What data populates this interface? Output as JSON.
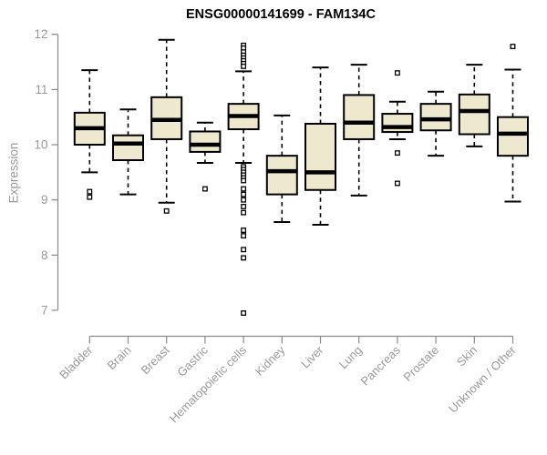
{
  "chart_data": {
    "type": "boxplot",
    "title": "ENSG00000141699 - FAM134C",
    "ylabel": "Expression",
    "xlabel": "",
    "ylim": [
      7,
      12
    ],
    "yticks": [
      7,
      8,
      9,
      10,
      11,
      12
    ],
    "grid": false,
    "legend": false,
    "categories": [
      "Bladder",
      "Brain",
      "Breast",
      "Gastric",
      "Hematopoietic cells",
      "Kidney",
      "Liver",
      "Lung",
      "Pancreas",
      "Prostate",
      "Skin",
      "Unknown / Other"
    ],
    "boxes": [
      {
        "category": "Bladder",
        "whisker_low": 9.5,
        "q1": 10.0,
        "median": 10.3,
        "q3": 10.58,
        "whisker_high": 11.35,
        "outliers": [
          9.15,
          9.05
        ]
      },
      {
        "category": "Brain",
        "whisker_low": 9.1,
        "q1": 9.72,
        "median": 10.02,
        "q3": 10.17,
        "whisker_high": 10.64,
        "outliers": []
      },
      {
        "category": "Breast",
        "whisker_low": 8.95,
        "q1": 10.1,
        "median": 10.45,
        "q3": 10.86,
        "whisker_high": 11.9,
        "outliers": [
          8.8
        ]
      },
      {
        "category": "Gastric",
        "whisker_low": 9.67,
        "q1": 9.87,
        "median": 10.0,
        "q3": 10.24,
        "whisker_high": 10.4,
        "outliers": [
          9.2
        ]
      },
      {
        "category": "Hematopoietic cells",
        "whisker_low": 9.67,
        "q1": 10.28,
        "median": 10.52,
        "q3": 10.74,
        "whisker_high": 11.33,
        "outliers": [
          11.8,
          11.75,
          11.68,
          11.62,
          11.57,
          11.52,
          11.47,
          11.42,
          9.6,
          9.55,
          9.5,
          9.45,
          9.4,
          9.35,
          9.2,
          9.1,
          9.0,
          8.88,
          8.77,
          8.45,
          8.35,
          8.1,
          7.95,
          6.95
        ]
      },
      {
        "category": "Kidney",
        "whisker_low": 8.6,
        "q1": 9.1,
        "median": 9.52,
        "q3": 9.8,
        "whisker_high": 10.53,
        "outliers": []
      },
      {
        "category": "Liver",
        "whisker_low": 8.55,
        "q1": 9.18,
        "median": 9.5,
        "q3": 10.38,
        "whisker_high": 11.4,
        "outliers": []
      },
      {
        "category": "Lung",
        "whisker_low": 9.08,
        "q1": 10.1,
        "median": 10.4,
        "q3": 10.9,
        "whisker_high": 11.45,
        "outliers": []
      },
      {
        "category": "Pancreas",
        "whisker_low": 10.1,
        "q1": 10.23,
        "median": 10.32,
        "q3": 10.56,
        "whisker_high": 10.78,
        "outliers": [
          11.3,
          9.85,
          9.3
        ]
      },
      {
        "category": "Prostate",
        "whisker_low": 9.8,
        "q1": 10.26,
        "median": 10.46,
        "q3": 10.74,
        "whisker_high": 10.96,
        "outliers": []
      },
      {
        "category": "Skin",
        "whisker_low": 9.97,
        "q1": 10.19,
        "median": 10.61,
        "q3": 10.91,
        "whisker_high": 11.45,
        "outliers": []
      },
      {
        "category": "Unknown / Other",
        "whisker_low": 8.97,
        "q1": 9.8,
        "median": 10.2,
        "q3": 10.5,
        "whisker_high": 11.36,
        "outliers": [
          11.78
        ]
      }
    ],
    "style": {
      "box_fill": "#EDE8CE",
      "box_border": "#000000",
      "median_color": "#000000",
      "whisker_color": "#000000",
      "outlier_color": "#000000",
      "axis_color": "#8B8B8B",
      "tick_label_color": "#999999",
      "title_color": "#000000",
      "background": "#FFFFFF"
    }
  }
}
